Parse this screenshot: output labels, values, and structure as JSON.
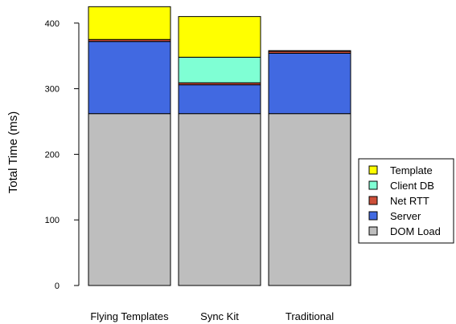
{
  "chart_data": {
    "type": "bar",
    "stacked": true,
    "ylabel": "Total Time (ms)",
    "xlabel": "",
    "ylim": [
      0,
      430
    ],
    "yticks": [
      0,
      100,
      200,
      300,
      400
    ],
    "categories": [
      "Flying Templates",
      "Sync Kit",
      "Traditional"
    ],
    "series": [
      {
        "name": "DOM Load",
        "color": "#bebebe",
        "values": [
          262,
          262,
          262
        ]
      },
      {
        "name": "Server",
        "color": "#4169e1",
        "values": [
          110,
          44,
          92
        ]
      },
      {
        "name": "Net RTT",
        "color": "#cd4f39",
        "values": [
          3,
          3,
          3
        ]
      },
      {
        "name": "Client DB",
        "color": "#7fffd4",
        "values": [
          0,
          39,
          0
        ]
      },
      {
        "name": "Template",
        "color": "#ffff00",
        "values": [
          50,
          62,
          1
        ]
      }
    ],
    "legend_position": "right",
    "grid": false
  }
}
